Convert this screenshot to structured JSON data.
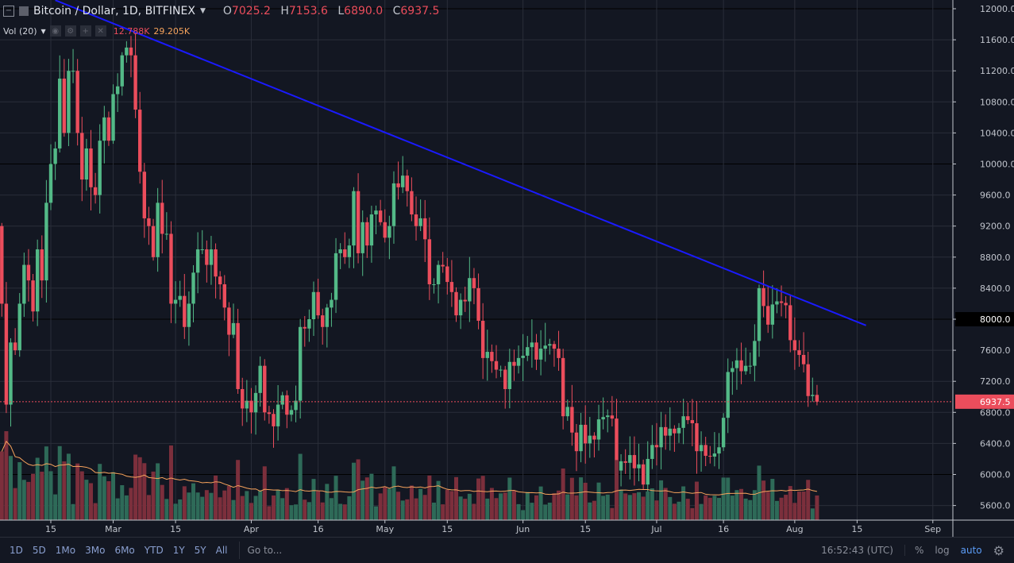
{
  "header": {
    "symbol_title": "Bitcoin / Dollar, 1D, BITFINEX",
    "open_label": "O",
    "open": "7025.2",
    "high_label": "H",
    "high": "7153.6",
    "low_label": "L",
    "low": "6890.0",
    "close_label": "C",
    "close": "6937.5"
  },
  "volume_legend": {
    "label": "Vol (20)",
    "value": "12.788K",
    "ma_value": "29.205K"
  },
  "toolbar": {
    "ranges": [
      "1D",
      "5D",
      "1Mo",
      "3Mo",
      "6Mo",
      "YTD",
      "1Y",
      "5Y",
      "All"
    ],
    "goto": "Go to...",
    "time": "16:52:43 (UTC)",
    "percent": "%",
    "log": "log",
    "auto": "auto"
  },
  "colors": {
    "up": "#53b987",
    "down": "#eb4d5c",
    "vol_up": "#2e6a58",
    "vol_down": "#7c2f3c",
    "trendline": "#1a1aff",
    "vol_ma": "#f7a35c",
    "background": "#131722"
  },
  "chart_data": {
    "type": "candlestick",
    "title": "Bitcoin / Dollar, 1D, BITFINEX",
    "start_date": "2018-02-04",
    "first_open": 9200,
    "closes": [
      8200,
      6900,
      7700,
      7600,
      8200,
      8700,
      8500,
      8100,
      8900,
      8500,
      9500,
      10000,
      10200,
      11100,
      10400,
      11200,
      11200,
      10400,
      9800,
      10200,
      9700,
      9600,
      10300,
      10600,
      10300,
      10900,
      11000,
      11400,
      11500,
      11400,
      10700,
      9900,
      9300,
      9200,
      8800,
      9500,
      9100,
      9100,
      8200,
      8250,
      8300,
      7900,
      8200,
      8600,
      8900,
      8900,
      8700,
      8900,
      8550,
      8450,
      8150,
      7800,
      7950,
      7100,
      6850,
      6950,
      6800,
      7050,
      7400,
      6800,
      6780,
      6620,
      6900,
      7020,
      6770,
      6830,
      6950,
      7900,
      7880,
      8000,
      8350,
      8050,
      7900,
      8150,
      8250,
      8850,
      8900,
      8800,
      8950,
      9650,
      8850,
      9250,
      8950,
      9350,
      9400,
      9250,
      9050,
      9200,
      9750,
      9700,
      9850,
      9650,
      9350,
      9200,
      9300,
      9030,
      8450,
      8450,
      8700,
      8680,
      8480,
      8350,
      8050,
      8250,
      8230,
      8530,
      8400,
      7980,
      7500,
      7580,
      7460,
      7350,
      7350,
      7100,
      7450,
      7400,
      7500,
      7530,
      7640,
      7700,
      7480,
      7620,
      7660,
      7680,
      7620,
      7500,
      6750,
      6870,
      6540,
      6300,
      6640,
      6400,
      6500,
      6450,
      6710,
      6740,
      6760,
      6720,
      6050,
      6170,
      6150,
      6250,
      6080,
      6130,
      5870,
      6200,
      6380,
      6350,
      6610,
      6500,
      6590,
      6530,
      6600,
      6750,
      6700,
      6660,
      6300,
      6380,
      6240,
      6230,
      6270,
      6350,
      6730,
      7320,
      7370,
      7470,
      7330,
      7400,
      7400,
      7720,
      8400,
      8170,
      7930,
      8190,
      8230,
      8210,
      8180,
      7730,
      7600,
      7540,
      7420,
      7010,
      7025.2,
      6937.5
    ],
    "last_candle": {
      "open": 7025.2,
      "high": 7153.6,
      "low": 6890.0,
      "close": 6937.5
    },
    "last_price_label": "6937.5",
    "highlight_price_label": "8000.0",
    "ylim": [
      5400,
      12100
    ],
    "y_ticks": [
      "12000.0",
      "11600.0",
      "11200.0",
      "10800.0",
      "10400.0",
      "10000.0",
      "9600.0",
      "9200.0",
      "8800.0",
      "8400.0",
      "8000.0",
      "7600.0",
      "7200.0",
      "6800.0",
      "6400.0",
      "6000.0",
      "5600.0"
    ],
    "x_ticks": [
      {
        "label": "15",
        "date": "2018-02-15"
      },
      {
        "label": "Mar",
        "date": "2018-03-01"
      },
      {
        "label": "15",
        "date": "2018-03-15"
      },
      {
        "label": "Apr",
        "date": "2018-04-01"
      },
      {
        "label": "16",
        "date": "2018-04-16"
      },
      {
        "label": "May",
        "date": "2018-05-01"
      },
      {
        "label": "15",
        "date": "2018-05-15"
      },
      {
        "label": "Jun",
        "date": "2018-06-01"
      },
      {
        "label": "15",
        "date": "2018-06-15"
      },
      {
        "label": "Jul",
        "date": "2018-07-01"
      },
      {
        "label": "16",
        "date": "2018-07-16"
      },
      {
        "label": "Aug",
        "date": "2018-08-01"
      },
      {
        "label": "15",
        "date": "2018-08-15"
      },
      {
        "label": "Sep",
        "date": "2018-09-01"
      }
    ],
    "trendline": {
      "start": {
        "date": "2018-02-16",
        "price": 12110
      },
      "end": {
        "date": "2018-08-17",
        "price": 7920
      }
    },
    "volume_ma_period": 20
  }
}
